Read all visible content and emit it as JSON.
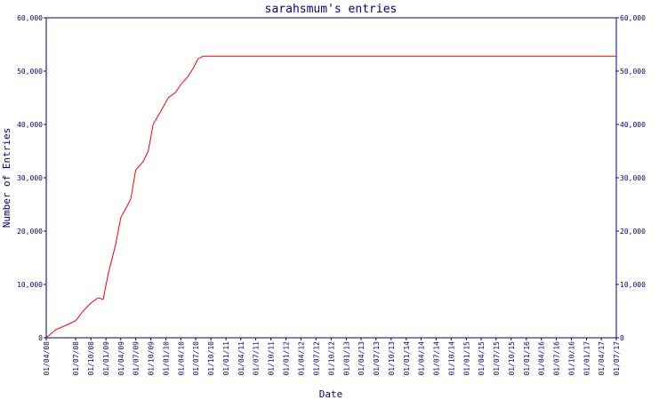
{
  "chart_data": {
    "type": "line",
    "title": "sarahsmum's entries",
    "xlabel": "Date",
    "ylabel": "Number of Entries",
    "ylim": [
      0,
      60000
    ],
    "y_ticks": [
      "0",
      "10,000",
      "20,000",
      "30,000",
      "40,000",
      "50,000",
      "60,000"
    ],
    "x_range": [
      "2008-01-04",
      "2017-07-01"
    ],
    "x_ticks": [
      {
        "date": "2008-01-04",
        "label": "01/04/08"
      },
      {
        "date": "2008-07-01",
        "label": "01/07/08"
      },
      {
        "date": "2008-10-01",
        "label": "01/10/08"
      },
      {
        "date": "2009-01-01",
        "label": "01/01/09"
      },
      {
        "date": "2009-04-01",
        "label": "01/04/09"
      },
      {
        "date": "2009-07-01",
        "label": "01/07/09"
      },
      {
        "date": "2009-10-01",
        "label": "01/10/09"
      },
      {
        "date": "2010-01-01",
        "label": "01/01/10"
      },
      {
        "date": "2010-04-01",
        "label": "01/04/10"
      },
      {
        "date": "2010-07-01",
        "label": "01/07/10"
      },
      {
        "date": "2010-10-01",
        "label": "01/10/10"
      },
      {
        "date": "2011-01-01",
        "label": "01/01/11"
      },
      {
        "date": "2011-04-01",
        "label": "01/04/11"
      },
      {
        "date": "2011-07-01",
        "label": "01/07/11"
      },
      {
        "date": "2011-10-01",
        "label": "01/10/11"
      },
      {
        "date": "2012-01-01",
        "label": "01/01/12"
      },
      {
        "date": "2012-04-01",
        "label": "01/04/12"
      },
      {
        "date": "2012-07-01",
        "label": "01/07/12"
      },
      {
        "date": "2012-10-01",
        "label": "01/10/12"
      },
      {
        "date": "2013-01-01",
        "label": "01/01/13"
      },
      {
        "date": "2013-04-01",
        "label": "01/04/13"
      },
      {
        "date": "2013-07-01",
        "label": "01/07/13"
      },
      {
        "date": "2013-10-01",
        "label": "01/10/13"
      },
      {
        "date": "2014-01-01",
        "label": "01/01/14"
      },
      {
        "date": "2014-04-01",
        "label": "01/04/14"
      },
      {
        "date": "2014-07-01",
        "label": "01/07/14"
      },
      {
        "date": "2014-10-01",
        "label": "01/10/14"
      },
      {
        "date": "2015-01-01",
        "label": "01/01/15"
      },
      {
        "date": "2015-04-01",
        "label": "01/04/15"
      },
      {
        "date": "2015-07-01",
        "label": "01/07/15"
      },
      {
        "date": "2015-10-01",
        "label": "01/10/15"
      },
      {
        "date": "2016-01-01",
        "label": "01/01/16"
      },
      {
        "date": "2016-04-01",
        "label": "01/04/16"
      },
      {
        "date": "2016-07-01",
        "label": "01/07/16"
      },
      {
        "date": "2016-10-01",
        "label": "01/10/16"
      },
      {
        "date": "2017-01-01",
        "label": "01/01/17"
      },
      {
        "date": "2017-04-01",
        "label": "01/04/17"
      },
      {
        "date": "2017-07-01",
        "label": "01/07/17"
      }
    ],
    "grid": false,
    "right_axis_mirrors_left": true,
    "series": [
      {
        "color": "#ff0000",
        "points": [
          {
            "x": "2008-01-04",
            "y": 0
          },
          {
            "x": "2008-03-01",
            "y": 1500
          },
          {
            "x": "2008-05-15",
            "y": 2500
          },
          {
            "x": "2008-07-01",
            "y": 3200
          },
          {
            "x": "2008-08-15",
            "y": 5000
          },
          {
            "x": "2008-10-01",
            "y": 6500
          },
          {
            "x": "2008-11-15",
            "y": 7500
          },
          {
            "x": "2008-12-15",
            "y": 7200
          },
          {
            "x": "2009-01-15",
            "y": 12000
          },
          {
            "x": "2009-03-01",
            "y": 17500
          },
          {
            "x": "2009-04-01",
            "y": 22500
          },
          {
            "x": "2009-05-15",
            "y": 25000
          },
          {
            "x": "2009-06-01",
            "y": 26000
          },
          {
            "x": "2009-07-01",
            "y": 31500
          },
          {
            "x": "2009-08-15",
            "y": 33000
          },
          {
            "x": "2009-09-15",
            "y": 35000
          },
          {
            "x": "2009-10-15",
            "y": 40000
          },
          {
            "x": "2009-12-01",
            "y": 42500
          },
          {
            "x": "2010-01-15",
            "y": 45000
          },
          {
            "x": "2010-03-01",
            "y": 46000
          },
          {
            "x": "2010-04-01",
            "y": 47500
          },
          {
            "x": "2010-05-15",
            "y": 49000
          },
          {
            "x": "2010-06-15",
            "y": 50500
          },
          {
            "x": "2010-07-15",
            "y": 52300
          },
          {
            "x": "2010-08-15",
            "y": 52800
          },
          {
            "x": "2017-07-01",
            "y": 52800
          }
        ]
      }
    ]
  }
}
